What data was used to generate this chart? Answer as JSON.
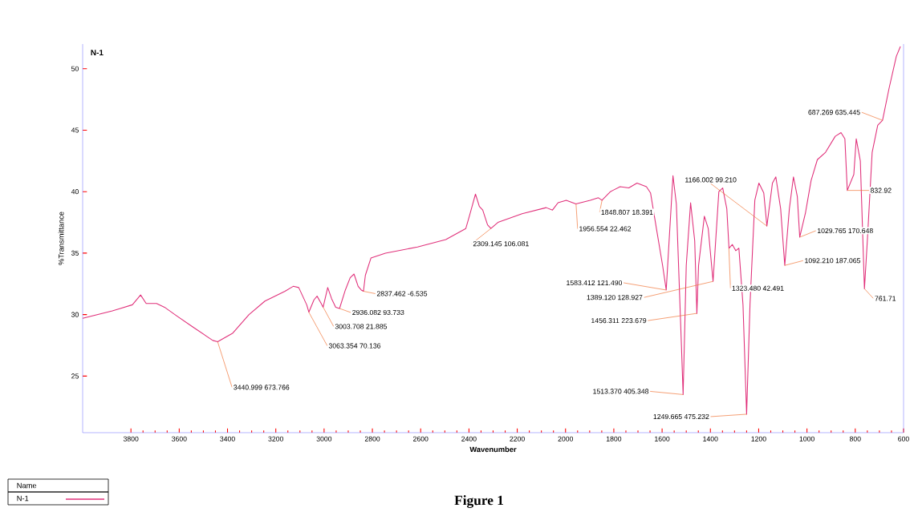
{
  "chart_data": {
    "type": "line",
    "xlabel": "Wavenumber",
    "ylabel": "%Transmittance",
    "legend_title": "Name",
    "legend": "bottom left",
    "xlim": [
      4000,
      600
    ],
    "ylim": [
      20.4,
      52
    ],
    "xticks": [
      3800,
      3600,
      3400,
      3200,
      3000,
      2800,
      2600,
      2400,
      2200,
      2000,
      1800,
      1600,
      1400,
      1200,
      1000,
      800,
      600
    ],
    "yticks": [
      25,
      30,
      35,
      40,
      45,
      50
    ],
    "series": [
      {
        "name": "N-1",
        "color": "#e0307a",
        "x": [
          4000,
          3877,
          3844,
          3794,
          3760,
          3737,
          3694,
          3661,
          3611,
          3544,
          3461,
          3441,
          3378,
          3311,
          3245,
          3162,
          3128,
          3105,
          3072,
          3063,
          3042,
          3029,
          3012,
          3004,
          2985,
          2969,
          2952,
          2936,
          2912,
          2892,
          2876,
          2859,
          2846,
          2837,
          2829,
          2806,
          2746,
          2613,
          2496,
          2413,
          2397,
          2373,
          2357,
          2343,
          2323,
          2309,
          2280,
          2180,
          2080,
          2054,
          2031,
          1997,
          1957,
          1898,
          1864,
          1849,
          1814,
          1774,
          1738,
          1704,
          1665,
          1648,
          1621,
          1598,
          1583,
          1571,
          1555,
          1541,
          1520,
          1513,
          1500,
          1482,
          1465,
          1456,
          1449,
          1425,
          1409,
          1389,
          1365,
          1349,
          1332,
          1323,
          1309,
          1295,
          1282,
          1265,
          1250,
          1236,
          1216,
          1199,
          1179,
          1166,
          1143,
          1129,
          1109,
          1092,
          1073,
          1056,
          1040,
          1030,
          1006,
          983,
          957,
          923,
          883,
          859,
          843,
          833,
          806,
          796,
          779,
          762,
          750,
          730,
          707,
          687,
          660,
          630,
          613
        ],
        "values": [
          29.7,
          30.3,
          30.5,
          30.8,
          31.6,
          30.9,
          30.9,
          30.6,
          29.9,
          29.0,
          27.9,
          27.8,
          28.5,
          30.0,
          31.1,
          31.9,
          32.3,
          32.2,
          30.8,
          30.2,
          31.2,
          31.5,
          30.9,
          30.6,
          32.2,
          31.3,
          30.6,
          30.5,
          32.0,
          33.0,
          33.3,
          32.3,
          32.0,
          31.9,
          33.2,
          34.6,
          35.0,
          35.5,
          36.1,
          37.0,
          38.1,
          39.8,
          38.8,
          38.5,
          37.3,
          37.0,
          37.5,
          38.2,
          38.7,
          38.5,
          39.1,
          39.3,
          39.0,
          39.3,
          39.5,
          39.3,
          40.0,
          40.4,
          40.3,
          40.7,
          40.4,
          39.9,
          36.7,
          34.0,
          32.0,
          36.0,
          41.3,
          39.0,
          27.5,
          23.5,
          34.0,
          39.1,
          36.0,
          30.1,
          34.0,
          38.0,
          37.0,
          32.7,
          40.0,
          40.3,
          38.6,
          35.4,
          35.7,
          35.2,
          35.4,
          30.8,
          21.9,
          30.8,
          39.3,
          40.7,
          39.9,
          37.2,
          40.7,
          41.2,
          38.6,
          34.0,
          38.6,
          41.2,
          39.6,
          36.3,
          38.3,
          40.9,
          42.6,
          43.2,
          44.5,
          44.8,
          44.3,
          40.1,
          41.4,
          44.3,
          42.5,
          32.1,
          36.0,
          43.2,
          45.4,
          45.8,
          48.4,
          51.0,
          51.8
        ]
      }
    ],
    "annotations": [
      {
        "text": "3440.999  673.766",
        "x": 3440.999,
        "y": 27.8
      },
      {
        "text": "3063.354  70.136",
        "x": 3063.354,
        "y": 30.2
      },
      {
        "text": "3003.708  21.885",
        "x": 3003.708,
        "y": 30.6
      },
      {
        "text": "2936.082  93.733",
        "x": 2936.082,
        "y": 30.5
      },
      {
        "text": "2837.462  -6.535",
        "x": 2837.462,
        "y": 31.9
      },
      {
        "text": "2309.145  106.081",
        "x": 2309.145,
        "y": 37.0
      },
      {
        "text": "1956.554  22.462",
        "x": 1956.554,
        "y": 39.0
      },
      {
        "text": "1848.807  18.391",
        "x": 1848.807,
        "y": 39.3
      },
      {
        "text": "1583.412  121.490",
        "x": 1583.412,
        "y": 32.0
      },
      {
        "text": "1513.370  405.348",
        "x": 1513.37,
        "y": 23.5
      },
      {
        "text": "1456.311  223.679",
        "x": 1456.311,
        "y": 30.1
      },
      {
        "text": "1389.120  128.927",
        "x": 1389.12,
        "y": 32.7
      },
      {
        "text": "1323.480  42.491",
        "x": 1323.48,
        "y": 35.4
      },
      {
        "text": "1249.665  475.232",
        "x": 1249.665,
        "y": 21.9
      },
      {
        "text": "1166.002  99.210",
        "x": 1166.002,
        "y": 37.2
      },
      {
        "text": "1092.210  187.065",
        "x": 1092.21,
        "y": 34.0
      },
      {
        "text": "1029.765  170.648",
        "x": 1029.765,
        "y": 36.3
      },
      {
        "text": "832.92",
        "x": 832.92,
        "y": 40.1
      },
      {
        "text": "761.71",
        "x": 761.71,
        "y": 32.1
      },
      {
        "text": "687.269  635.445",
        "x": 687.269,
        "y": 45.8
      },
      "N-1",
      "Figure 1"
    ]
  }
}
